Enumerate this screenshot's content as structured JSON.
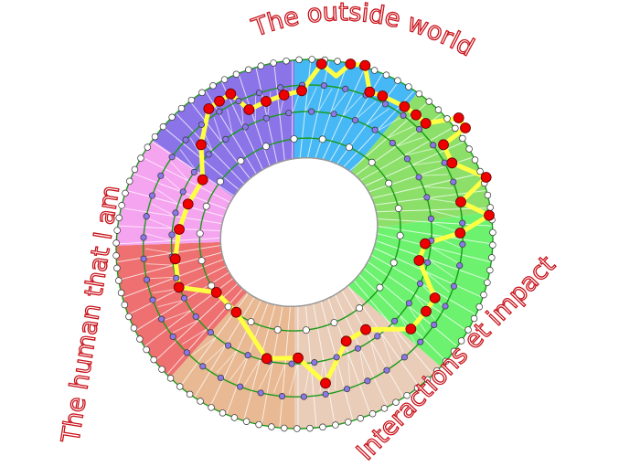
{
  "labels": {
    "top": "The outside world",
    "left": "The human that I am",
    "bottom_right": "Interactions et impact"
  },
  "segments": [
    {
      "color": "#45b8f5"
    },
    {
      "color": "#8ce06a"
    },
    {
      "color": "#6cf26e"
    },
    {
      "color": "#e9cdb8"
    },
    {
      "color": "#e8b993"
    },
    {
      "color": "#ee7070"
    },
    {
      "color": "#f5a4f0"
    },
    {
      "color": "#8b74e8"
    }
  ],
  "colors": {
    "ring_line": "#1a9a1a",
    "path": "#ffff44",
    "node_highlight": "#ee0000",
    "node_mid": "#8a78e8",
    "node_outer": "#ffffff",
    "label": "#c8141c"
  }
}
